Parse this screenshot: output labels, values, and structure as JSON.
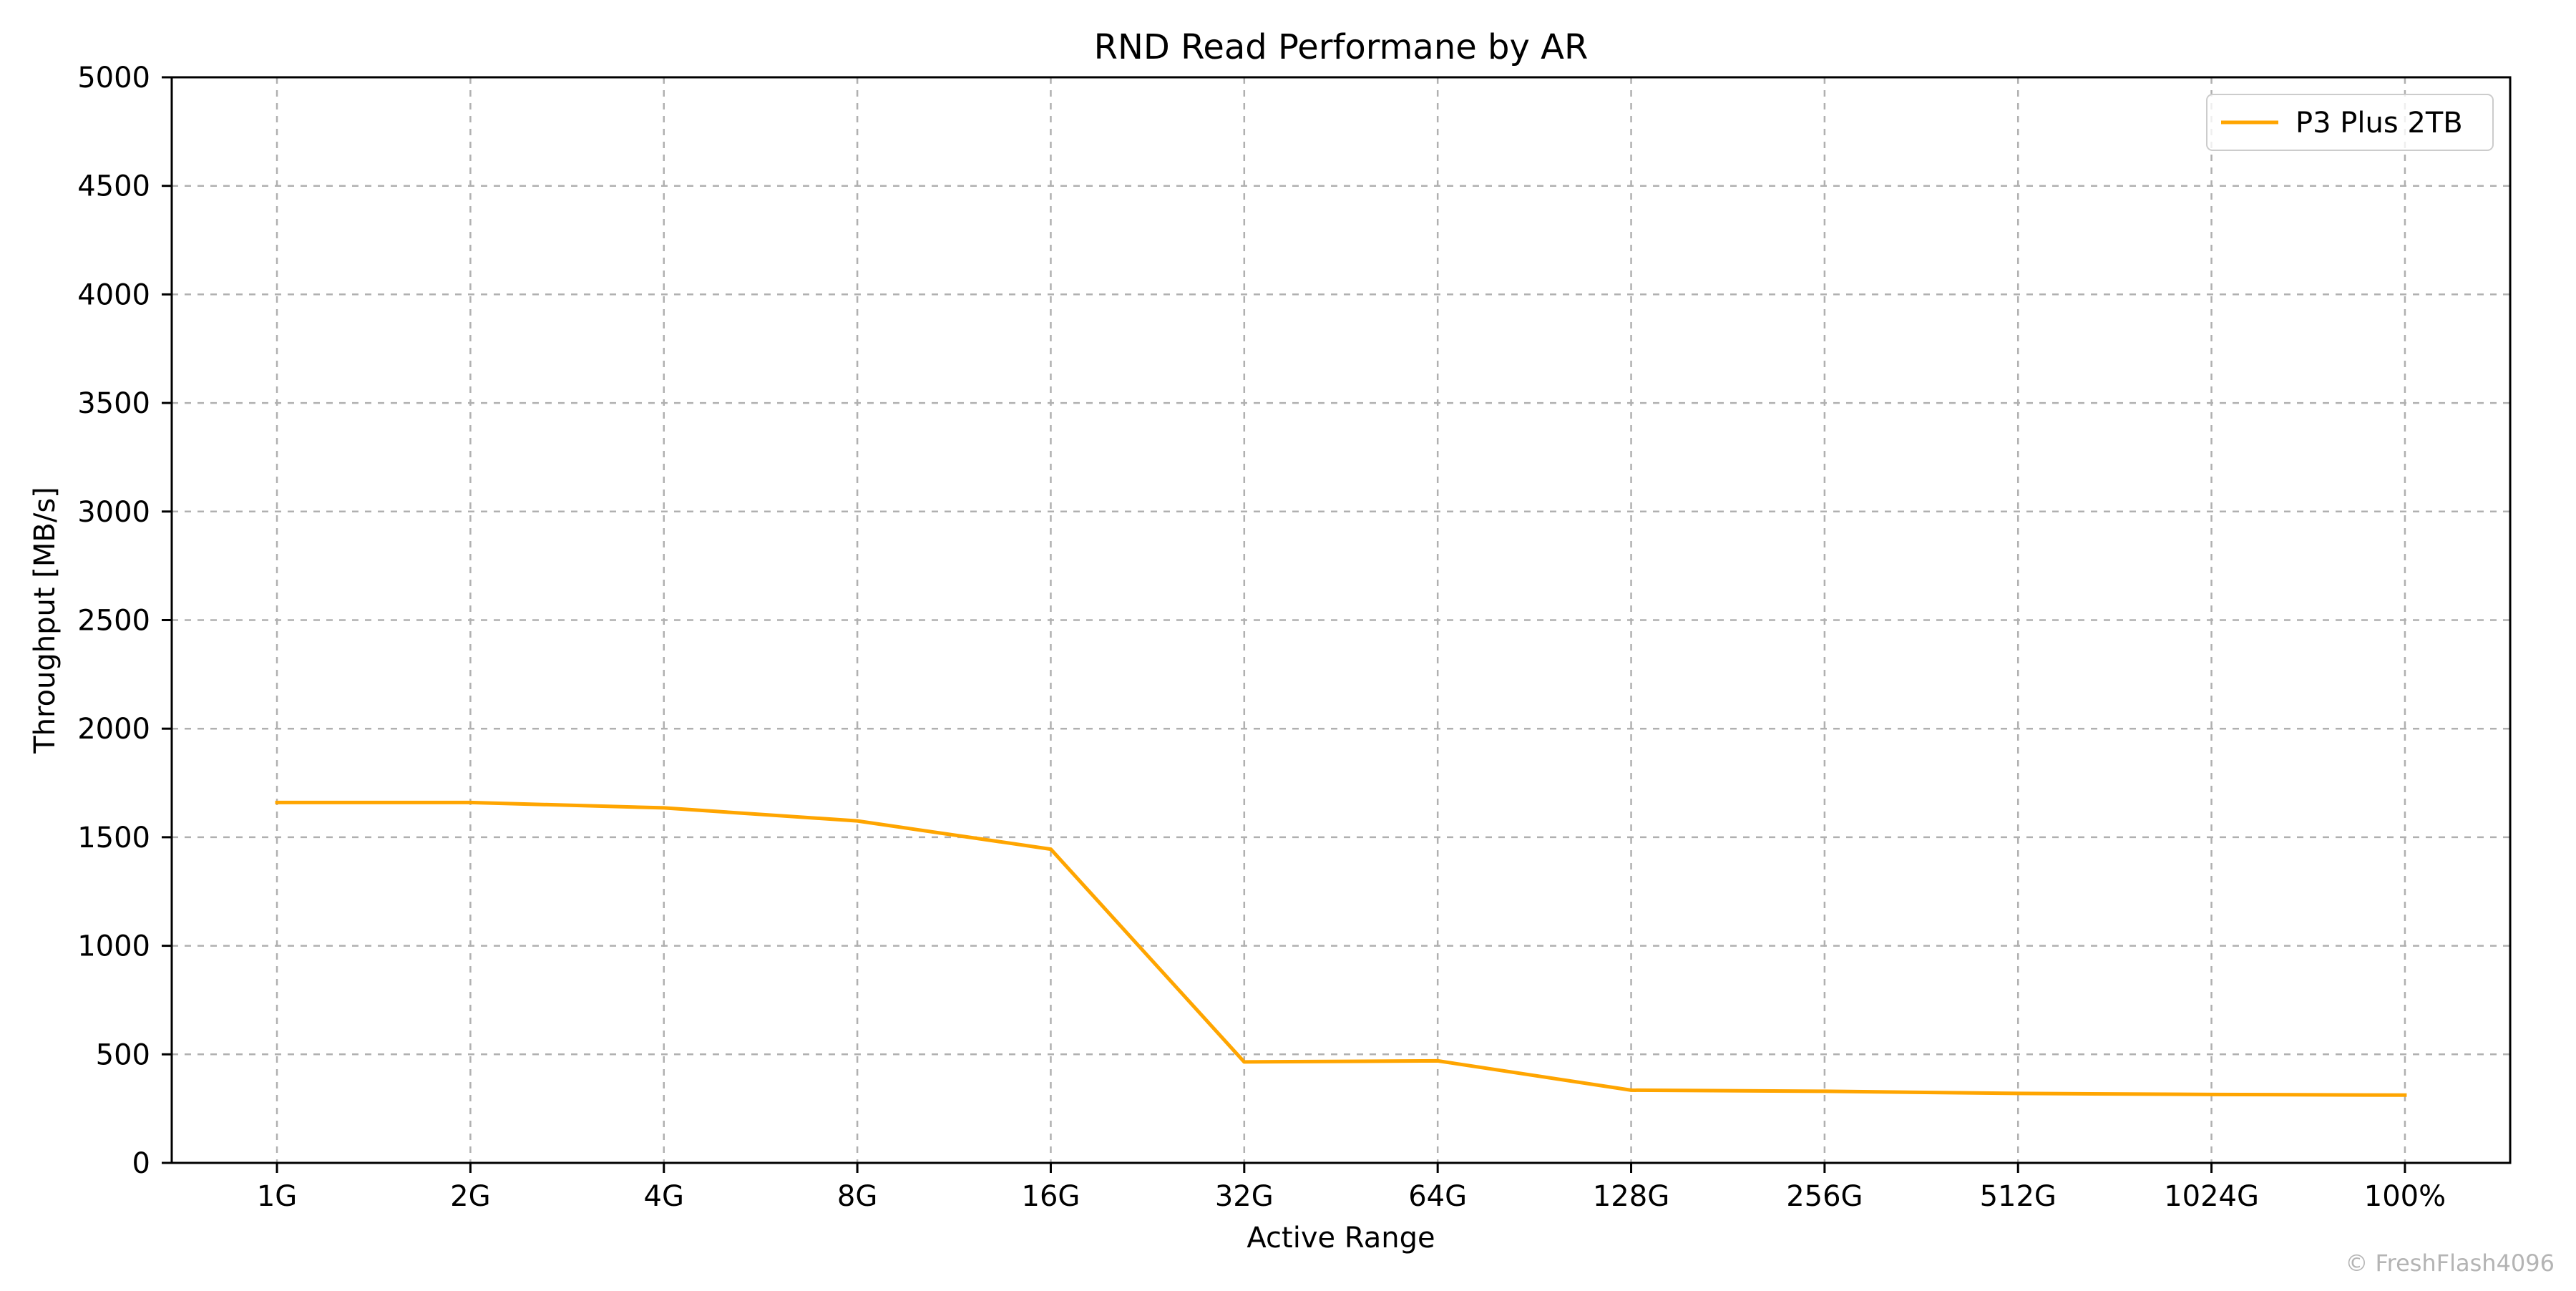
{
  "chart_data": {
    "type": "line",
    "title": "RND Read Performane by AR",
    "xlabel": "Active Range",
    "ylabel": "Throughput [MB/s]",
    "categories": [
      "1G",
      "2G",
      "4G",
      "8G",
      "16G",
      "32G",
      "64G",
      "128G",
      "256G",
      "512G",
      "1024G",
      "100%"
    ],
    "series": [
      {
        "name": "P3 Plus 2TB",
        "color": "#ffa500",
        "values": [
          1660,
          1660,
          1635,
          1575,
          1445,
          465,
          470,
          335,
          330,
          320,
          315,
          312
        ]
      }
    ],
    "ylim": [
      0,
      5000
    ],
    "yticks": [
      0,
      500,
      1000,
      1500,
      2000,
      2500,
      3000,
      3500,
      4000,
      4500,
      5000
    ],
    "grid": true,
    "legend_position": "top-right"
  },
  "watermark": "© FreshFlash4096"
}
